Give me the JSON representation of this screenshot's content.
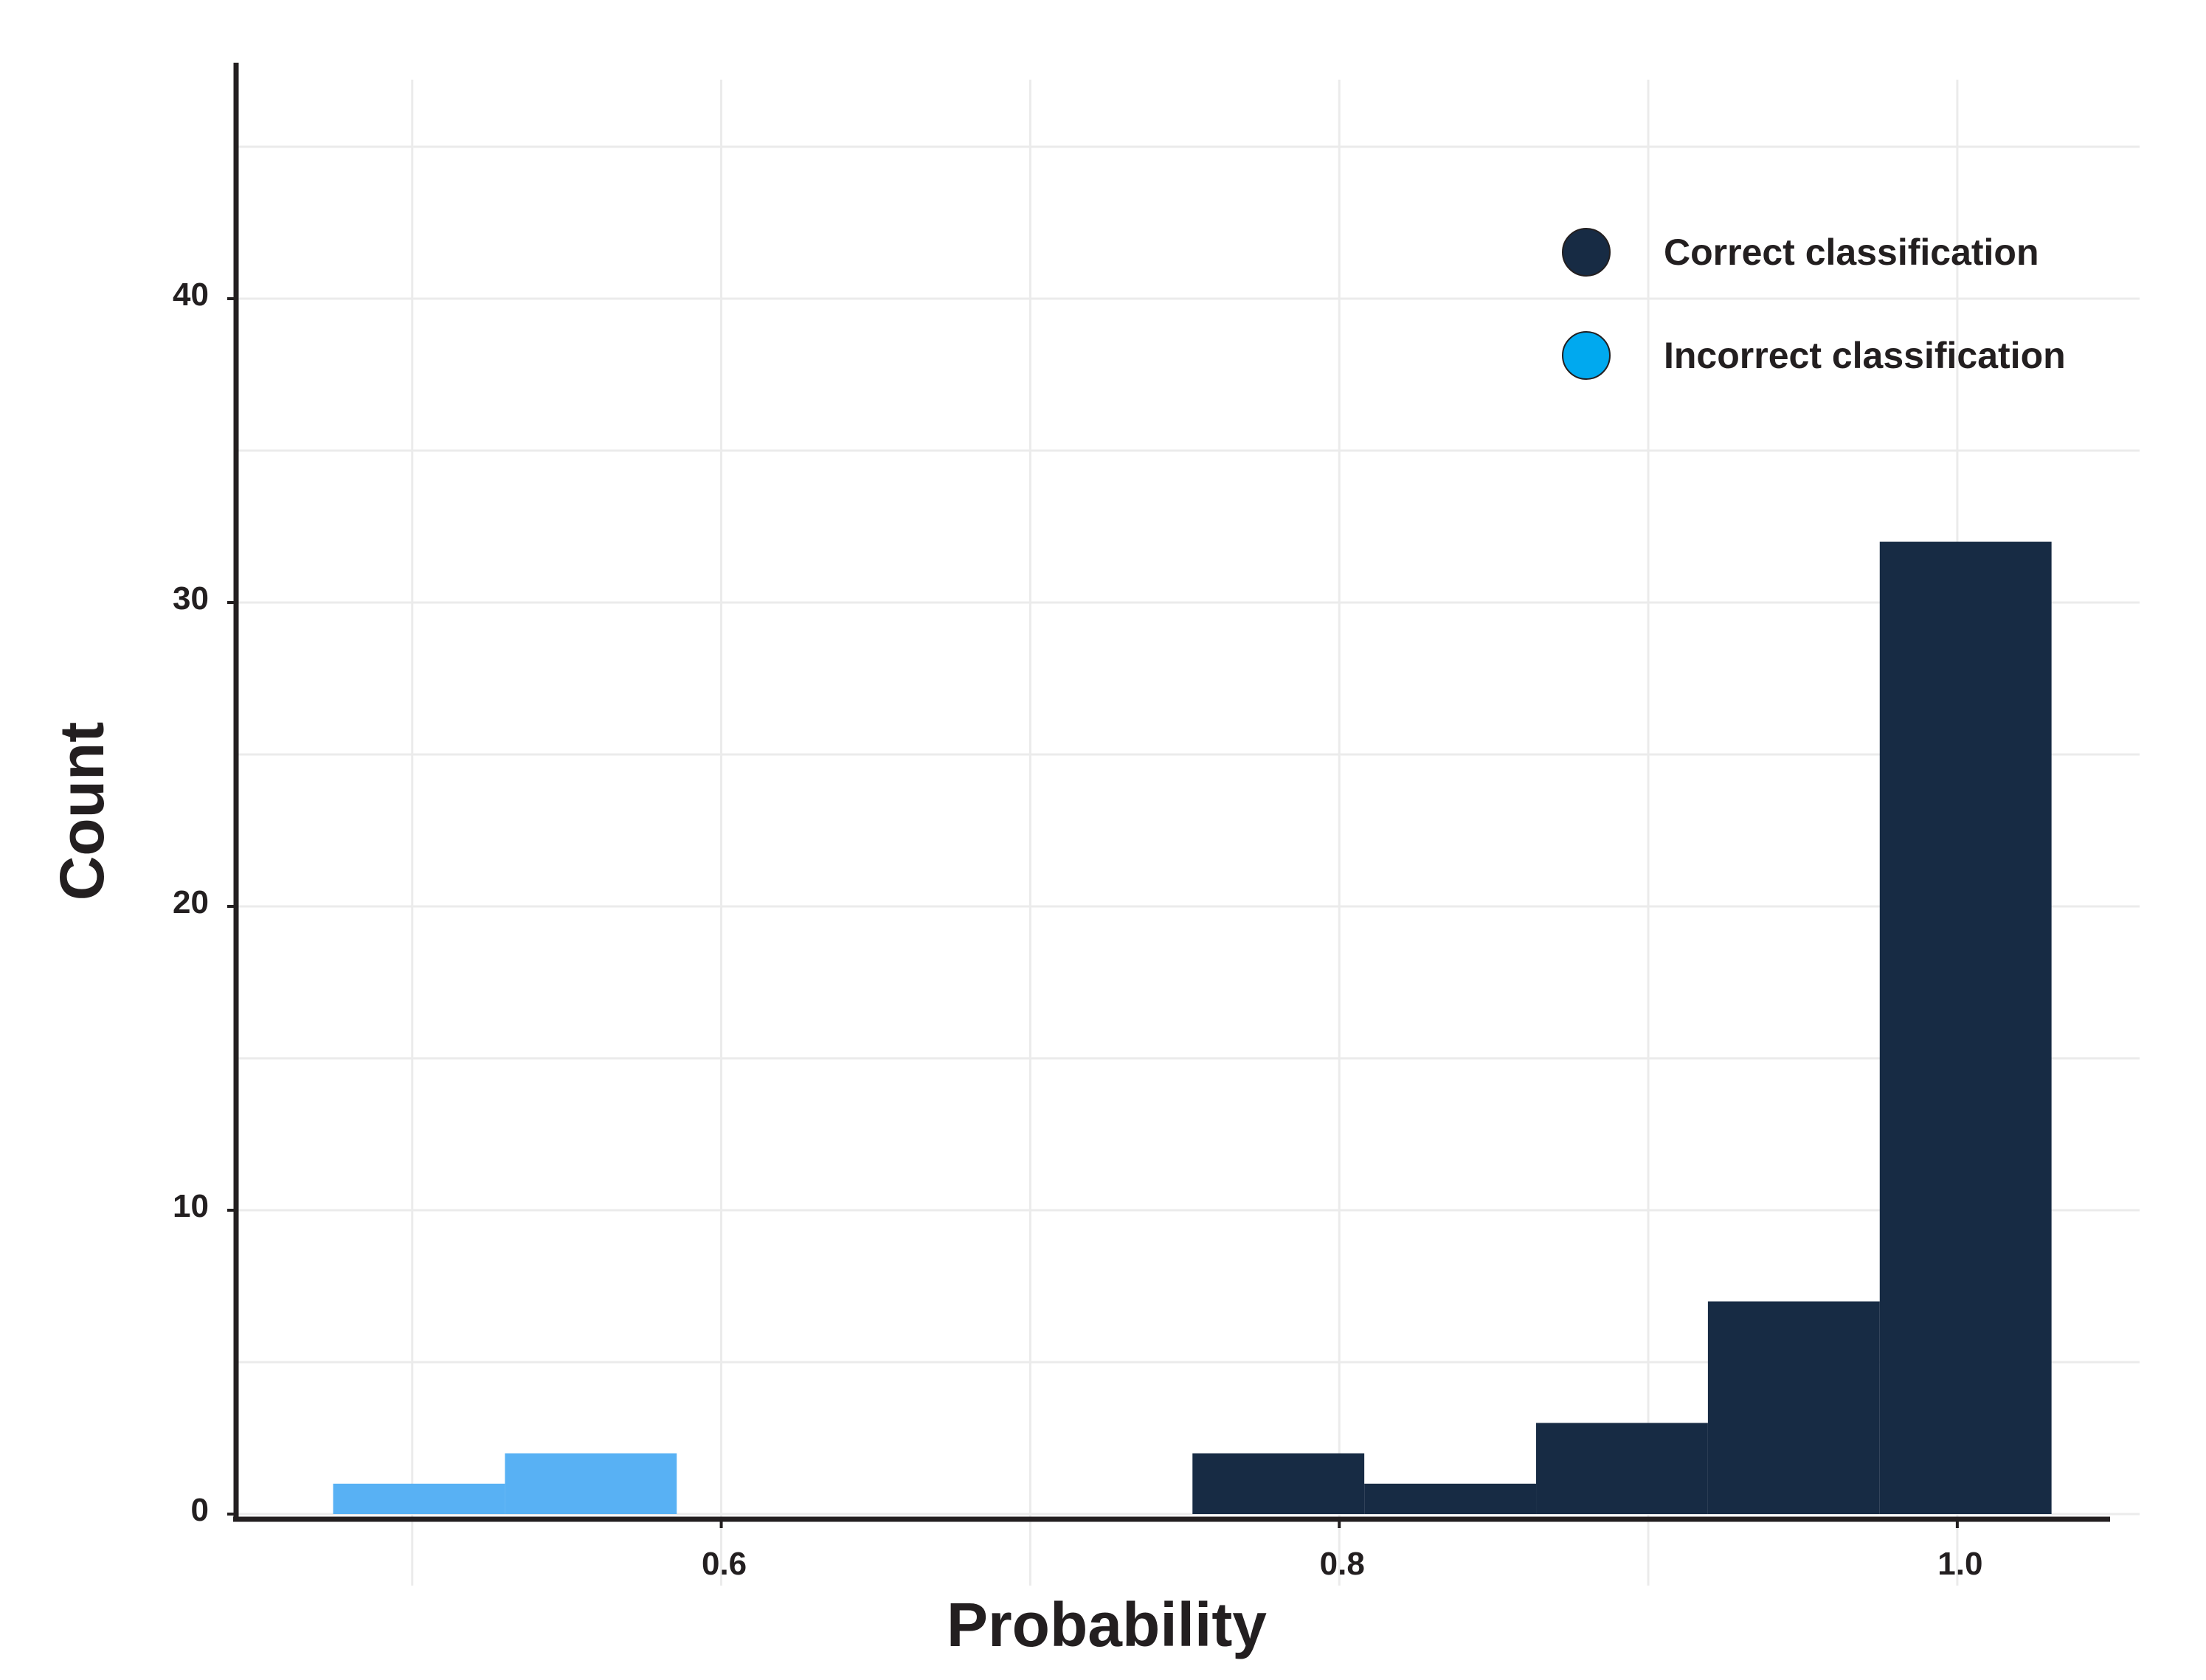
{
  "chart_data": {
    "type": "bar",
    "subtype": "histogram",
    "xlabel": "Probability",
    "ylabel": "Count",
    "x_ticks": [
      0.6,
      0.8,
      1.0
    ],
    "x_tick_labels": [
      "0.6",
      "0.8",
      "1.0"
    ],
    "y_ticks": [
      0,
      10,
      20,
      30,
      40
    ],
    "y_tick_labels": [
      "0",
      "10",
      "20",
      "30",
      "40"
    ],
    "xlim": [
      0.443,
      1.059
    ],
    "ylim": [
      0,
      45
    ],
    "grid": true,
    "legend_position": "top-right",
    "series": [
      {
        "name": "Correct classification",
        "color": "#172b44",
        "legend_color": "#172b44",
        "bins": [
          {
            "x0": 0.7525,
            "x1": 0.8081,
            "count": 2
          },
          {
            "x0": 0.8081,
            "x1": 0.8637,
            "count": 1
          },
          {
            "x0": 0.8637,
            "x1": 0.9193,
            "count": 3
          },
          {
            "x0": 0.9193,
            "x1": 0.9749,
            "count": 7
          },
          {
            "x0": 0.9749,
            "x1": 1.0305,
            "count": 32
          }
        ]
      },
      {
        "name": "Incorrect classification",
        "color": "#58b1f4",
        "legend_color": "#00a9ef",
        "bins": [
          {
            "x0": 0.4744,
            "x1": 0.53,
            "count": 1
          },
          {
            "x0": 0.53,
            "x1": 0.5856,
            "count": 2
          }
        ]
      }
    ]
  }
}
